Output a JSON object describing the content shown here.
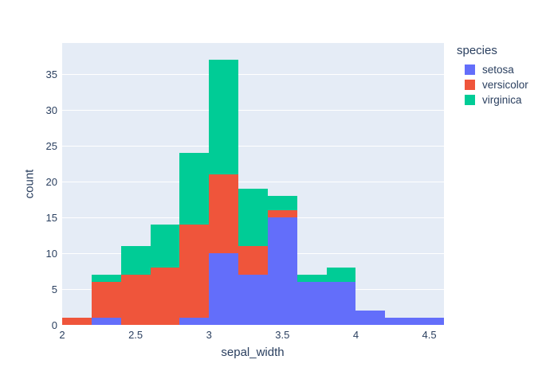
{
  "figure": {
    "background_color": "#ffffff",
    "plot_background_color": "#E5ECF6",
    "gridline_color": "#ffffff",
    "text_color": "#2a3f5f"
  },
  "chart_data": {
    "type": "bar",
    "subtype": "stacked-histogram",
    "title": "",
    "xlabel": "sepal_width",
    "ylabel": "count",
    "legend_title": "species",
    "legend_position": "right-top",
    "grid": true,
    "xlim": [
      2.0,
      4.6
    ],
    "ylim": [
      0,
      39.33
    ],
    "x_ticks": [
      2,
      2.5,
      3,
      3.5,
      4,
      4.5
    ],
    "x_tick_labels": [
      "2",
      "2.5",
      "3",
      "3.5",
      "4",
      "4.5"
    ],
    "y_ticks": [
      0,
      5,
      10,
      15,
      20,
      25,
      30,
      35
    ],
    "y_tick_labels": [
      "0",
      "5",
      "10",
      "15",
      "20",
      "25",
      "30",
      "35"
    ],
    "bin_size": 0.2,
    "bin_edges": [
      2.0,
      2.2,
      2.4,
      2.6,
      2.8,
      3.0,
      3.2,
      3.4,
      3.6,
      3.8,
      4.0,
      4.2,
      4.4,
      4.6
    ],
    "stack_order": "bottom-to-top",
    "series": [
      {
        "name": "setosa",
        "color": "#636EFA",
        "values": [
          0,
          1,
          0,
          0,
          1,
          10,
          7,
          15,
          6,
          6,
          2,
          1,
          1
        ]
      },
      {
        "name": "versicolor",
        "color": "#EF553B",
        "values": [
          1,
          5,
          7,
          8,
          13,
          11,
          4,
          1,
          0,
          0,
          0,
          0,
          0
        ]
      },
      {
        "name": "virginica",
        "color": "#00CC96",
        "values": [
          0,
          1,
          4,
          6,
          10,
          16,
          8,
          2,
          1,
          2,
          0,
          0,
          0
        ]
      }
    ],
    "bin_totals": [
      1,
      7,
      11,
      14,
      24,
      37,
      19,
      18,
      7,
      8,
      2,
      1,
      1
    ]
  }
}
